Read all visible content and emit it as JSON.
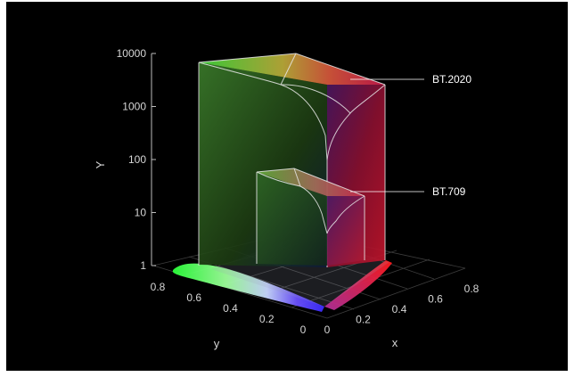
{
  "chart_data": {
    "type": "3d-gamut-volume",
    "z_axis": {
      "label": "Y",
      "scale": "log",
      "ticks": [
        "1",
        "10",
        "100",
        "1000",
        "10000"
      ],
      "range": [
        1,
        10000
      ]
    },
    "y_axis": {
      "label": "y",
      "ticks": [
        "0.8",
        "0.6",
        "0.4",
        "0.2",
        "0"
      ],
      "range": [
        0,
        0.8
      ]
    },
    "x_axis": {
      "label": "x",
      "ticks": [
        "0",
        "0.2",
        "0.4",
        "0.6",
        "0.8"
      ],
      "range": [
        0,
        0.8
      ]
    },
    "grid": true,
    "background": "#000000",
    "series": [
      {
        "name": "BT.2020",
        "peak_Y": 10000,
        "primaries": {
          "red": [
            0.708,
            0.292
          ],
          "green": [
            0.17,
            0.797
          ],
          "blue": [
            0.131,
            0.046
          ]
        }
      },
      {
        "name": "BT.709",
        "peak_Y": 100,
        "primaries": {
          "red": [
            0.64,
            0.33
          ],
          "green": [
            0.3,
            0.6
          ],
          "blue": [
            0.15,
            0.06
          ]
        }
      }
    ]
  }
}
